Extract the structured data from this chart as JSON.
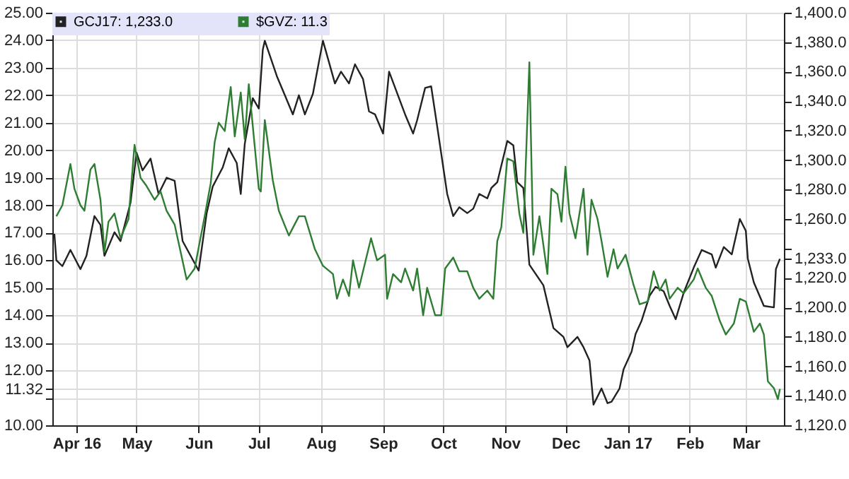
{
  "chart_data": {
    "type": "line",
    "series": [
      {
        "name": "GCJ17: 1,233.0",
        "color": "#222222",
        "axis": "y2",
        "x": [
          "2016-03-21",
          "2016-03-22",
          "2016-03-25",
          "2016-03-29",
          "2016-04-03",
          "2016-04-06",
          "2016-04-10",
          "2016-04-13",
          "2016-04-15",
          "2016-04-20",
          "2016-04-23",
          "2016-04-28",
          "2016-05-01",
          "2016-05-04",
          "2016-05-08",
          "2016-05-12",
          "2016-05-16",
          "2016-05-20",
          "2016-05-24",
          "2016-06-01",
          "2016-06-05",
          "2016-06-08",
          "2016-06-13",
          "2016-06-16",
          "2016-06-20",
          "2016-06-22",
          "2016-06-24",
          "2016-06-28",
          "2016-07-01",
          "2016-07-03",
          "2016-07-04",
          "2016-07-10",
          "2016-07-14",
          "2016-07-18",
          "2016-07-21",
          "2016-07-24",
          "2016-07-28",
          "2016-08-02",
          "2016-08-08",
          "2016-08-11",
          "2016-08-15",
          "2016-08-18",
          "2016-08-22",
          "2016-08-25",
          "2016-08-28",
          "2016-09-01",
          "2016-09-04",
          "2016-09-12",
          "2016-09-16",
          "2016-09-18",
          "2016-09-22",
          "2016-09-25",
          "2016-09-28",
          "2016-10-03",
          "2016-10-06",
          "2016-10-09",
          "2016-10-13",
          "2016-10-16",
          "2016-10-19",
          "2016-10-23",
          "2016-10-25",
          "2016-10-28",
          "2016-11-02",
          "2016-11-05",
          "2016-11-07",
          "2016-11-10",
          "2016-11-13",
          "2016-11-20",
          "2016-11-25",
          "2016-11-30",
          "2016-12-02",
          "2016-12-07",
          "2016-12-10",
          "2016-12-13",
          "2016-12-15",
          "2016-12-19",
          "2016-12-22",
          "2016-12-24",
          "2016-12-28",
          "2016-12-30",
          "2017-01-03",
          "2017-01-05",
          "2017-01-08",
          "2017-01-12",
          "2017-01-15",
          "2017-01-19",
          "2017-01-22",
          "2017-01-25",
          "2017-01-29",
          "2017-02-03",
          "2017-02-07",
          "2017-02-12",
          "2017-02-14",
          "2017-02-18",
          "2017-02-22",
          "2017-02-26",
          "2017-03-01",
          "2017-03-02",
          "2017-03-05",
          "2017-03-10",
          "2017-03-15",
          "2017-03-16",
          "2017-03-18"
        ],
        "values": [
          1250,
          1232,
          1228,
          1239,
          1226,
          1235,
          1262,
          1256,
          1235,
          1251,
          1245,
          1271,
          1305,
          1293,
          1301,
          1277,
          1288,
          1286,
          1245,
          1225,
          1264,
          1282,
          1295,
          1308,
          1298,
          1277,
          1311,
          1342,
          1335,
          1375,
          1381,
          1357,
          1344,
          1331,
          1344,
          1331,
          1345,
          1381,
          1352,
          1360,
          1352,
          1365,
          1355,
          1333,
          1331,
          1318,
          1360,
          1331,
          1318,
          1327,
          1349,
          1350,
          1323,
          1277,
          1262,
          1268,
          1264,
          1267,
          1277,
          1274,
          1281,
          1285,
          1313,
          1310,
          1285,
          1281,
          1229,
          1215,
          1186,
          1180,
          1173,
          1180,
          1173,
          1164,
          1134,
          1145,
          1135,
          1136,
          1145,
          1158,
          1170,
          1182,
          1191,
          1208,
          1214,
          1211,
          1201,
          1192,
          1210,
          1227,
          1239,
          1236,
          1227,
          1241,
          1236,
          1260,
          1252,
          1233,
          1217,
          1201,
          1200,
          1226,
          1233
        ]
      },
      {
        "name": "$GVZ: 11.3",
        "color": "#2e7d32",
        "x": [
          "2016-03-22",
          "2016-03-25",
          "2016-03-29",
          "2016-03-31",
          "2016-04-03",
          "2016-04-05",
          "2016-04-08",
          "2016-04-10",
          "2016-04-13",
          "2016-04-15",
          "2016-04-17",
          "2016-04-20",
          "2016-04-23",
          "2016-04-27",
          "2016-04-30",
          "2016-05-03",
          "2016-05-06",
          "2016-05-10",
          "2016-05-13",
          "2016-05-16",
          "2016-05-20",
          "2016-05-26",
          "2016-05-30",
          "2016-06-04",
          "2016-06-07",
          "2016-06-09",
          "2016-06-11",
          "2016-06-14",
          "2016-06-17",
          "2016-06-19",
          "2016-06-22",
          "2016-06-24",
          "2016-06-26",
          "2016-07-01",
          "2016-07-02",
          "2016-07-04",
          "2016-07-08",
          "2016-07-11",
          "2016-07-16",
          "2016-07-21",
          "2016-07-24",
          "2016-07-29",
          "2016-08-02",
          "2016-08-07",
          "2016-08-09",
          "2016-08-12",
          "2016-08-15",
          "2016-08-17",
          "2016-08-20",
          "2016-08-23",
          "2016-08-26",
          "2016-08-29",
          "2016-09-02",
          "2016-09-03",
          "2016-09-06",
          "2016-09-10",
          "2016-09-12",
          "2016-09-16",
          "2016-09-18",
          "2016-09-21",
          "2016-09-23",
          "2016-09-27",
          "2016-09-30",
          "2016-10-02",
          "2016-10-06",
          "2016-10-09",
          "2016-10-13",
          "2016-10-16",
          "2016-10-19",
          "2016-10-23",
          "2016-10-26",
          "2016-10-28",
          "2016-10-30",
          "2016-11-02",
          "2016-11-05",
          "2016-11-08",
          "2016-11-10",
          "2016-11-13",
          "2016-11-15",
          "2016-11-18",
          "2016-11-22",
          "2016-11-24",
          "2016-11-27",
          "2016-11-29",
          "2016-12-01",
          "2016-12-03",
          "2016-12-06",
          "2016-12-10",
          "2016-12-12",
          "2016-12-14",
          "2016-12-17",
          "2016-12-19",
          "2016-12-22",
          "2016-12-25",
          "2016-12-27",
          "2016-12-31",
          "2017-01-04",
          "2017-01-07",
          "2017-01-11",
          "2017-01-14",
          "2017-01-17",
          "2017-01-20",
          "2017-01-22",
          "2017-01-26",
          "2017-01-29",
          "2017-02-03",
          "2017-02-05",
          "2017-02-09",
          "2017-02-12",
          "2017-02-16",
          "2017-02-19",
          "2017-02-23",
          "2017-02-26",
          "2017-03-01",
          "2017-03-05",
          "2017-03-08",
          "2017-03-10",
          "2017-03-12",
          "2017-03-15",
          "2017-03-17",
          "2017-03-18"
        ],
        "values": [
          17.6,
          18.0,
          19.5,
          18.6,
          18.0,
          17.8,
          19.3,
          19.5,
          18.2,
          16.3,
          17.4,
          17.7,
          16.8,
          17.5,
          20.2,
          19.0,
          18.7,
          18.2,
          18.5,
          17.8,
          17.3,
          15.3,
          15.7,
          17.6,
          18.8,
          20.3,
          21.0,
          20.7,
          22.3,
          20.5,
          22.1,
          20.4,
          22.4,
          18.6,
          18.5,
          21.1,
          18.9,
          17.8,
          16.9,
          17.6,
          17.6,
          16.4,
          15.8,
          15.5,
          14.6,
          15.3,
          14.7,
          16.0,
          15.0,
          15.9,
          16.8,
          16.0,
          16.2,
          14.6,
          15.5,
          15.2,
          15.7,
          14.9,
          15.7,
          14.0,
          15.0,
          14.0,
          14.0,
          15.7,
          16.1,
          15.6,
          15.6,
          15.0,
          14.6,
          14.9,
          14.6,
          16.7,
          17.2,
          19.7,
          19.6,
          17.7,
          17.0,
          23.2,
          16.2,
          17.6,
          15.5,
          18.6,
          18.4,
          17.4,
          19.4,
          17.7,
          16.8,
          18.6,
          16.2,
          18.2,
          17.5,
          16.7,
          15.4,
          16.4,
          15.7,
          16.2,
          15.1,
          14.4,
          14.5,
          15.6,
          14.9,
          15.3,
          14.6,
          15.0,
          14.8,
          15.3,
          15.7,
          15.0,
          14.7,
          13.8,
          13.3,
          13.7,
          14.6,
          14.5,
          13.4,
          13.7,
          13.3,
          11.6,
          11.35,
          10.95,
          11.32
        ]
      }
    ],
    "xlim": [
      "2016-03-20",
      "2017-03-20"
    ],
    "xticks": [
      {
        "value": "2016-04-01",
        "label": "Apr 16"
      },
      {
        "value": "2016-05-01",
        "label": "May"
      },
      {
        "value": "2016-06-01",
        "label": "Jun"
      },
      {
        "value": "2016-07-01",
        "label": "Jul"
      },
      {
        "value": "2016-08-01",
        "label": "Aug"
      },
      {
        "value": "2016-09-01",
        "label": "Sep"
      },
      {
        "value": "2016-10-01",
        "label": "Oct"
      },
      {
        "value": "2016-11-01",
        "label": "Nov"
      },
      {
        "value": "2016-12-01",
        "label": "Dec"
      },
      {
        "value": "2017-01-01",
        "label": "Jan 17"
      },
      {
        "value": "2017-02-01",
        "label": "Feb"
      },
      {
        "value": "2017-03-01",
        "label": "Mar"
      }
    ],
    "ylim": [
      10,
      25
    ],
    "yticks": [
      {
        "value": 10,
        "label": "10.00"
      },
      {
        "value": 11,
        "label": null
      },
      {
        "value": 11.32,
        "label": "11.32"
      },
      {
        "value": 12,
        "label": "12.00"
      },
      {
        "value": 13,
        "label": "13.00"
      },
      {
        "value": 14,
        "label": "14.00"
      },
      {
        "value": 15,
        "label": "15.00"
      },
      {
        "value": 16,
        "label": "16.00"
      },
      {
        "value": 17,
        "label": "17.00"
      },
      {
        "value": 18,
        "label": "18.00"
      },
      {
        "value": 19,
        "label": "19.00"
      },
      {
        "value": 20,
        "label": "20.00"
      },
      {
        "value": 21,
        "label": "21.00"
      },
      {
        "value": 22,
        "label": "22.00"
      },
      {
        "value": 23,
        "label": "23.00"
      },
      {
        "value": 24,
        "label": "24.00"
      },
      {
        "value": 25,
        "label": "25.00"
      }
    ],
    "y2lim": [
      1120,
      1400
    ],
    "y2ticks": [
      {
        "value": 1120,
        "label": "1,120.0"
      },
      {
        "value": 1140,
        "label": "1,140.0"
      },
      {
        "value": 1160,
        "label": "1,160.0"
      },
      {
        "value": 1180,
        "label": "1,180.0"
      },
      {
        "value": 1200,
        "label": "1,200.0"
      },
      {
        "value": 1220,
        "label": "1,220.0"
      },
      {
        "value": 1233,
        "label": "1,233.0"
      },
      {
        "value": 1240,
        "label": null
      },
      {
        "value": 1260,
        "label": "1,260.0"
      },
      {
        "value": 1280,
        "label": "1,280.0"
      },
      {
        "value": 1300,
        "label": "1,300.0"
      },
      {
        "value": 1320,
        "label": "1,320.0"
      },
      {
        "value": 1340,
        "label": "1,340.0"
      },
      {
        "value": 1360,
        "label": "1,360.0"
      },
      {
        "value": 1380,
        "label": "1,380.0"
      },
      {
        "value": 1400,
        "label": "1,400.0"
      }
    ],
    "grid": true,
    "legend": "top left",
    "line_style": "solid",
    "marker": "none"
  }
}
